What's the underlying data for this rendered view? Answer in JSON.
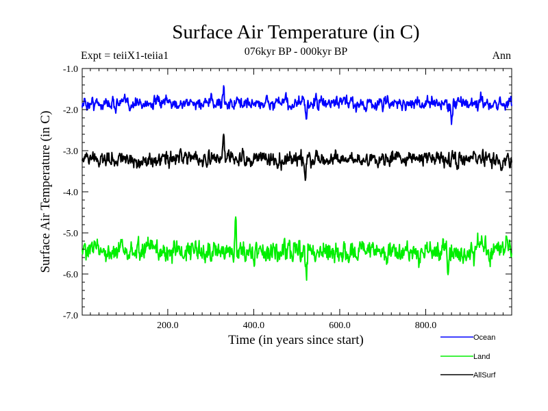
{
  "chart_data": {
    "type": "line",
    "title": "Surface Air Temperature (in C)",
    "subtitle": "076kyr BP - 000kyr BP",
    "expt_label": "Expt = teiiX1-teiia1",
    "period_label": "Ann",
    "xlabel": "Time (in years since start)",
    "ylabel": "Surface Air Temperature (in C)",
    "xlim": [
      1,
      1000
    ],
    "ylim": [
      -7.0,
      -1.0
    ],
    "x_tick_labels": [
      "200.0",
      "400.0",
      "600.0",
      "800.0"
    ],
    "x_tick_values": [
      200,
      400,
      600,
      800
    ],
    "y_tick_labels": [
      "-1.0",
      "-2.0",
      "-3.0",
      "-4.0",
      "-5.0",
      "-6.0",
      "-7.0"
    ],
    "y_tick_values": [
      -1,
      -2,
      -3,
      -4,
      -5,
      -6,
      -7
    ],
    "legend_position": "bottom-right, below plot",
    "series": [
      {
        "name": "Ocean",
        "color": "#0000ff",
        "mean": -1.85,
        "spread": 0.16,
        "min": -2.4,
        "max": -1.42,
        "notable": [
          [
            330,
            -1.42
          ],
          [
            522,
            -2.38
          ],
          [
            860,
            -2.32
          ]
        ]
      },
      {
        "name": "Land",
        "color": "#00ee00",
        "mean": -5.45,
        "spread": 0.27,
        "min": -6.2,
        "max": -4.5,
        "notable": [
          [
            358,
            -4.5
          ],
          [
            522,
            -6.2
          ],
          [
            852,
            -6.05
          ]
        ]
      },
      {
        "name": "AllSurf",
        "color": "#000000",
        "mean": -3.2,
        "spread": 0.19,
        "min": -3.72,
        "max": -2.6,
        "notable": [
          [
            330,
            -2.62
          ],
          [
            520,
            -3.72
          ],
          [
            858,
            -3.62
          ]
        ]
      }
    ]
  }
}
